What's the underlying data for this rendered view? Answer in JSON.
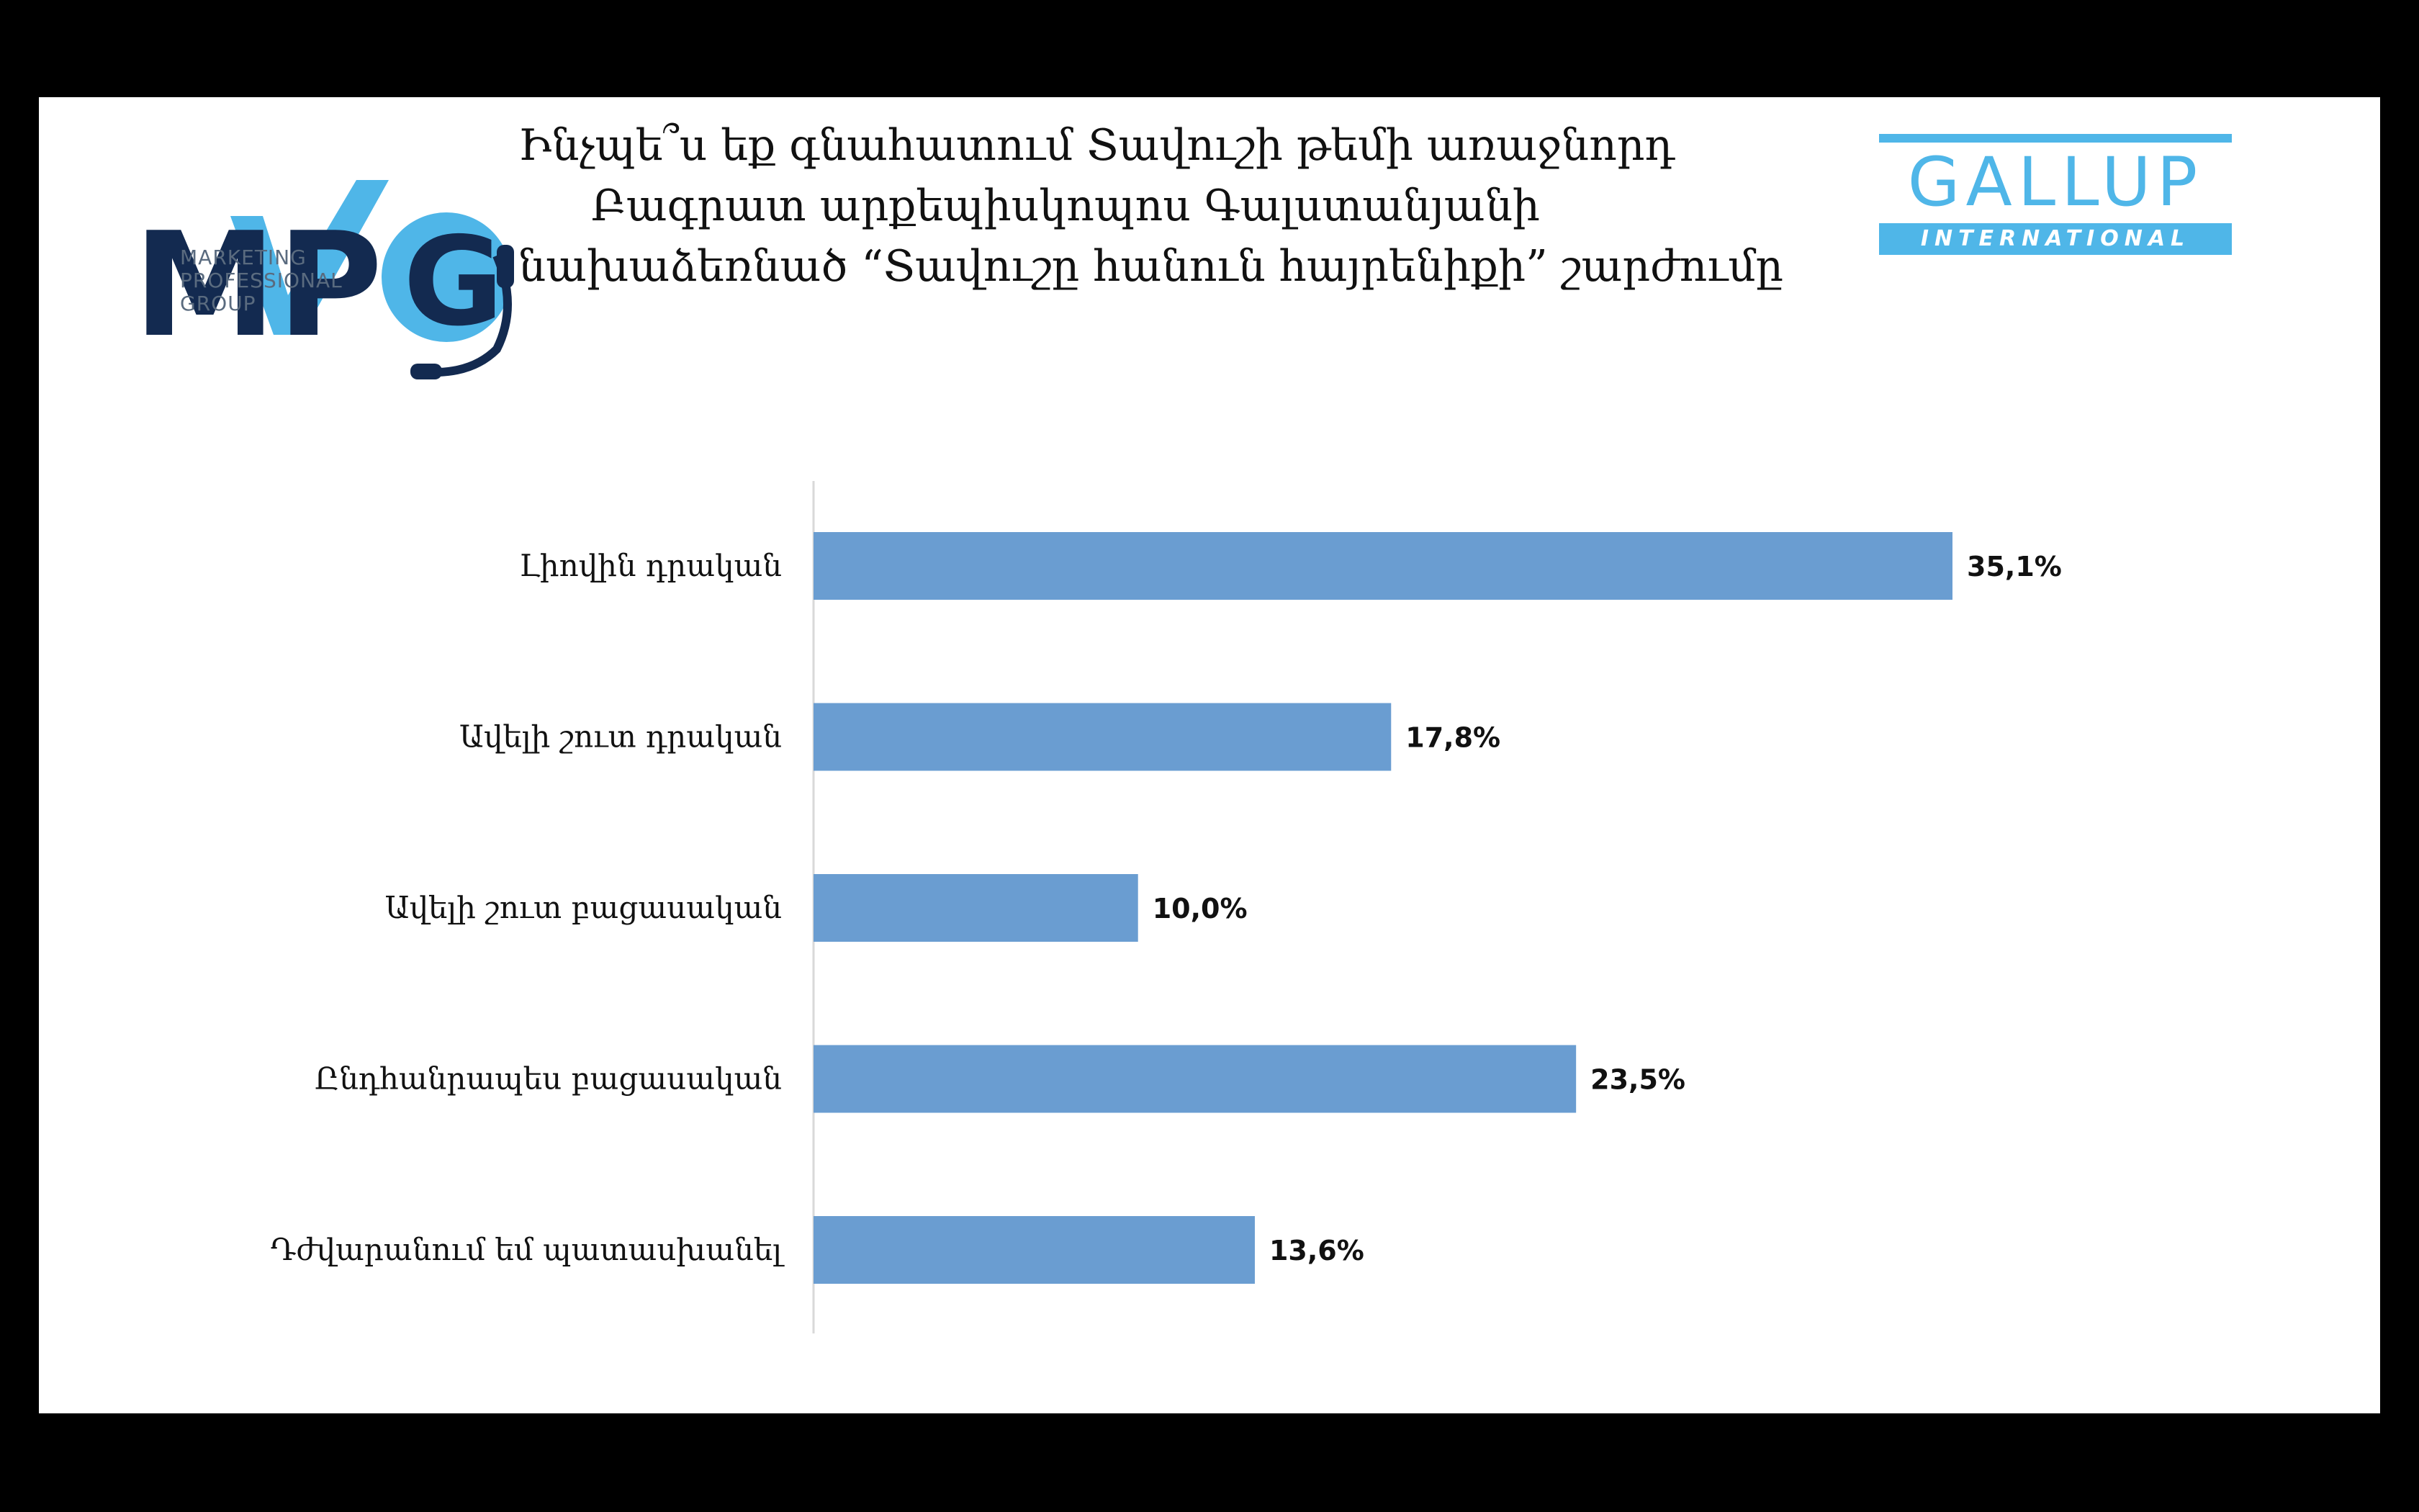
{
  "title_lines": [
    "Ինչպե՞ս եք գնահատում Տավուշի թեմի առաջնորդ",
    "Բագրատ արքեպիսկոպոս Գալստանյանի",
    "նախաձեռնած “Տավուշը հանուն հայրենիքի” շարժումը"
  ],
  "logos": {
    "mpg": {
      "letters": "MPG",
      "lines": [
        "MARKETING",
        "PROFESSIONAL",
        "GROUP"
      ],
      "color_dark": "#132a50",
      "color_light": "#4fb6e8"
    },
    "gallup": {
      "word": "GALLUP",
      "band": "INTERNATIONAL",
      "color": "#4fb6e8"
    }
  },
  "chart_data": {
    "type": "bar",
    "orientation": "horizontal",
    "categories": [
      "Լիովին դրական",
      "Ավելի շուտ դրական",
      "Ավելի շուտ բացասական",
      "Ընդհանրապես բացասական",
      "Դժվարանում եմ պատասխանել"
    ],
    "values": [
      35.1,
      17.8,
      10.0,
      23.5,
      13.6
    ],
    "value_labels": [
      "35,1%",
      "17,8%",
      "10,0%",
      "23,5%",
      "13,6%"
    ],
    "bar_color": "#6a9dd1",
    "xlim": [
      0,
      40
    ],
    "grid": false,
    "legend": "none"
  }
}
